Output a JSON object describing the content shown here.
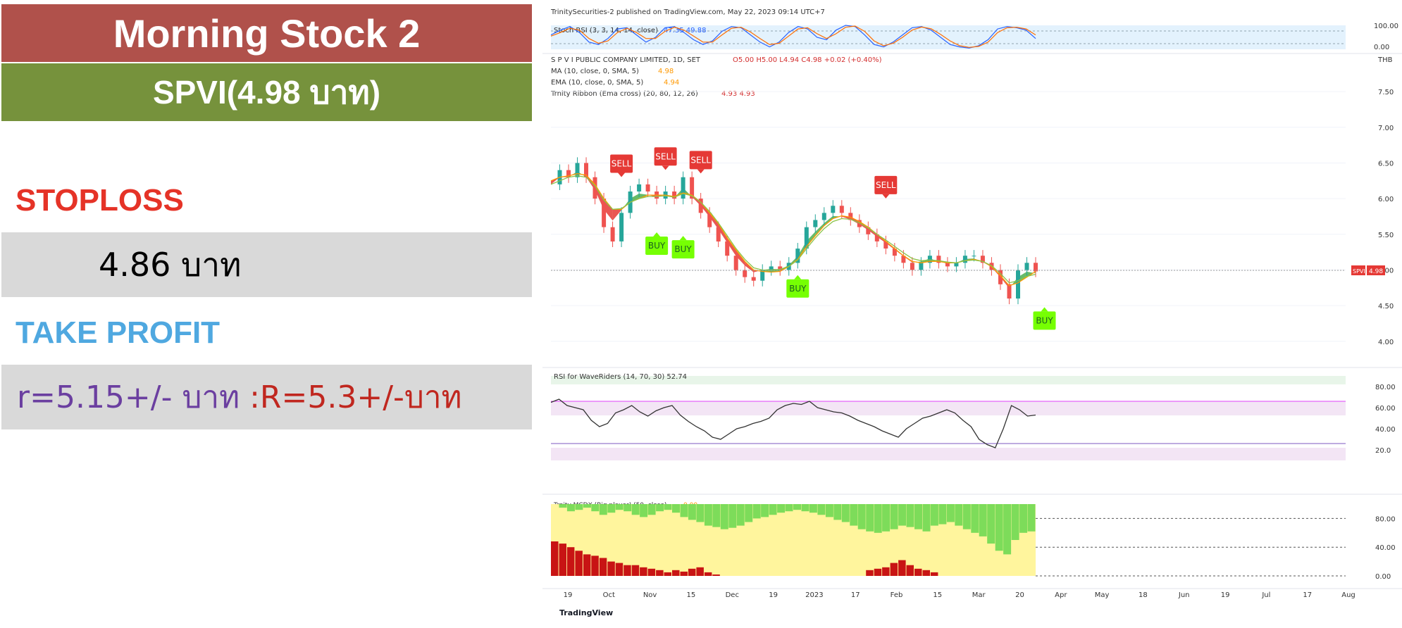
{
  "left_panel": {
    "title": "Morning Stock 2",
    "symbol_price": "SPVI(4.98 บาท)",
    "stoploss_label": "STOPLOSS",
    "stoploss_value": "4.86 บาท",
    "take_profit_label": "TAKE PROFIT",
    "take_profit_r1": "r=5.15+/- บาท ",
    "take_profit_r2": ":R=5.3+/-บาท",
    "colors": {
      "title_bg": "#b0514b",
      "symbol_bg": "#76923c",
      "stoploss": "#e53327",
      "take_profit": "#4fa8e0",
      "r1": "#6b3fa0",
      "r2": "#c0271f",
      "box_bg": "#d9d9d9"
    }
  },
  "chart_header": {
    "published": "TrinitySecurities-2 published on TradingView.com, May 22, 2023 09:14 UTC+7",
    "stoch_label": "Stoch RSI (3, 3, 14, 14, close)",
    "stoch_values": "47.35  49.88",
    "ohlc_name": "S P V I PUBLIC COMPANY LIMITED, 1D, SET",
    "ohlc": "O5.00  H5.00  L4.94  C4.98  +0.02 (+0.40%)",
    "ma_label": "MA (10, close, 0, SMA, 5)",
    "ma_value": "4.98",
    "ema_label": "EMA (10, close, 0, SMA, 5)",
    "ema_value": "4.94",
    "ribbon_label": "Trnity Ribbon (Ema cross) (20, 80, 12, 26)",
    "ribbon_values": "4.93  4.93",
    "currency": "THB",
    "ticker_tag": "SPVI",
    "price_tag": "4.98",
    "rsi_label": "RSI for WaveRiders (14, 70, 30)  52.74",
    "mcdx_label": "Trnity MCDX (Big player) (50, close)",
    "mcdx_value": "0.00",
    "watermark": "TradingView"
  },
  "chart_data": [
    {
      "type": "line",
      "title": "Stoch RSI (3, 3, 14, 14, close)",
      "y_ticks": [
        "100.00",
        "0.00"
      ],
      "ylim": [
        0,
        100
      ],
      "series": [
        {
          "name": "K",
          "color": "#2962ff",
          "values": [
            60,
            80,
            95,
            70,
            30,
            20,
            45,
            85,
            90,
            60,
            30,
            50,
            90,
            95,
            70,
            40,
            20,
            35,
            75,
            95,
            90,
            60,
            30,
            10,
            30,
            70,
            95,
            85,
            50,
            40,
            80,
            100,
            95,
            60,
            20,
            10,
            30,
            60,
            90,
            95,
            80,
            50,
            20,
            10,
            5,
            15,
            40,
            85,
            95,
            90,
            80,
            45
          ]
        },
        {
          "name": "D",
          "color": "#ff6d00",
          "values": [
            55,
            70,
            88,
            80,
            45,
            25,
            35,
            70,
            88,
            70,
            45,
            45,
            75,
            92,
            80,
            55,
            30,
            30,
            60,
            88,
            92,
            72,
            45,
            20,
            25,
            55,
            85,
            90,
            65,
            45,
            65,
            92,
            97,
            75,
            35,
            15,
            25,
            50,
            80,
            93,
            86,
            62,
            35,
            15,
            8,
            12,
            30,
            70,
            90,
            92,
            85,
            60
          ]
        }
      ]
    },
    {
      "type": "line",
      "title": "S P V I PUBLIC COMPANY LIMITED, 1D, SET",
      "y_ticks": [
        "7.50",
        "7.00",
        "6.50",
        "6.00",
        "5.50",
        "5.00",
        "4.50",
        "4.00"
      ],
      "ylim": [
        3.85,
        7.6
      ],
      "x_ticks": [
        "19",
        "Oct",
        "Nov",
        "15",
        "Dec",
        "19",
        "2023",
        "17",
        "Feb",
        "15",
        "Mar",
        "20",
        "Apr",
        "May",
        "18",
        "Jun",
        "19",
        "Jul",
        "17",
        "Aug"
      ],
      "series": [
        {
          "name": "Close",
          "color": "#26a69a",
          "values": [
            6.2,
            6.4,
            6.3,
            6.5,
            6.3,
            6.0,
            5.6,
            5.4,
            5.8,
            6.1,
            6.2,
            6.1,
            6.0,
            6.1,
            6.0,
            6.3,
            6.0,
            5.8,
            5.6,
            5.4,
            5.2,
            5.0,
            4.9,
            4.85,
            5.0,
            5.05,
            5.0,
            5.1,
            5.3,
            5.6,
            5.7,
            5.8,
            5.9,
            5.8,
            5.7,
            5.6,
            5.5,
            5.4,
            5.3,
            5.2,
            5.1,
            5.0,
            5.1,
            5.2,
            5.1,
            5.05,
            5.1,
            5.2,
            5.2,
            5.1,
            5.0,
            4.8,
            4.6,
            5.0,
            5.1,
            4.98
          ]
        },
        {
          "name": "MA (10, close, 0, SMA, 5)",
          "color": "#ff9800",
          "values": [
            6.25,
            6.3,
            6.32,
            6.35,
            6.33,
            6.2,
            6.0,
            5.85,
            5.85,
            5.95,
            6.0,
            6.05,
            6.05,
            6.05,
            6.03,
            6.08,
            6.05,
            5.95,
            5.8,
            5.65,
            5.45,
            5.28,
            5.12,
            5.0,
            4.98,
            4.97,
            4.98,
            5.05,
            5.15,
            5.33,
            5.48,
            5.62,
            5.72,
            5.76,
            5.74,
            5.68,
            5.6,
            5.5,
            5.4,
            5.3,
            5.2,
            5.12,
            5.1,
            5.12,
            5.12,
            5.1,
            5.1,
            5.13,
            5.15,
            5.12,
            5.05,
            4.92,
            4.78,
            4.82,
            4.9,
            4.98
          ]
        },
        {
          "name": "EMA (10, close, 0, SMA, 5)",
          "color": "#8bc34a",
          "values": [
            6.2,
            6.25,
            6.3,
            6.32,
            6.3,
            6.18,
            5.98,
            5.85,
            5.86,
            5.95,
            6.0,
            6.03,
            6.03,
            6.04,
            6.02,
            6.07,
            6.04,
            5.95,
            5.82,
            5.66,
            5.48,
            5.3,
            5.15,
            5.03,
            5.0,
            5.0,
            5.01,
            5.05,
            5.14,
            5.3,
            5.45,
            5.58,
            5.68,
            5.72,
            5.71,
            5.66,
            5.59,
            5.5,
            5.42,
            5.33,
            5.24,
            5.16,
            5.13,
            5.14,
            5.13,
            5.11,
            5.1,
            5.13,
            5.14,
            5.12,
            5.06,
            4.95,
            4.82,
            4.85,
            4.91,
            4.94
          ]
        }
      ],
      "annotations": [
        {
          "text": "SELL",
          "x_index": 8,
          "value": 6.5
        },
        {
          "text": "SELL",
          "x_index": 13,
          "value": 6.6
        },
        {
          "text": "SELL",
          "x_index": 17,
          "value": 6.55
        },
        {
          "text": "BUY",
          "x_index": 12,
          "value": 5.35
        },
        {
          "text": "BUY",
          "x_index": 15,
          "value": 5.3
        },
        {
          "text": "BUY",
          "x_index": 28,
          "value": 4.75
        },
        {
          "text": "SELL",
          "x_index": 38,
          "value": 6.2
        },
        {
          "text": "BUY",
          "x_index": 56,
          "value": 4.3
        }
      ],
      "last_value": 4.98
    },
    {
      "type": "line",
      "title": "RSI for WaveRiders (14, 70, 30)",
      "y_ticks": [
        "80.00",
        "60.00",
        "40.00",
        "20.0"
      ],
      "ylim": [
        10,
        90
      ],
      "series": [
        {
          "name": "RSI",
          "color": "#333333",
          "values": [
            65,
            68,
            62,
            60,
            58,
            48,
            42,
            45,
            55,
            58,
            62,
            56,
            52,
            57,
            60,
            62,
            53,
            47,
            42,
            38,
            32,
            30,
            35,
            40,
            42,
            45,
            47,
            50,
            58,
            62,
            64,
            63,
            66,
            60,
            58,
            56,
            55,
            52,
            48,
            45,
            42,
            38,
            35,
            32,
            40,
            45,
            50,
            52,
            55,
            58,
            55,
            48,
            42,
            30,
            25,
            22,
            40,
            62,
            58,
            52,
            53
          ]
        }
      ]
    },
    {
      "type": "bar",
      "title": "Trnity MCDX (Big player) (50, close)",
      "y_ticks": [
        "80.00",
        "40.00",
        "0.00"
      ],
      "ylim": [
        0,
        100
      ],
      "series": [
        {
          "name": "Retailer (green)",
          "color": "#7ddc5a",
          "values": [
            0,
            5,
            10,
            8,
            5,
            10,
            15,
            12,
            8,
            10,
            15,
            18,
            15,
            10,
            8,
            12,
            18,
            22,
            25,
            30,
            32,
            35,
            33,
            30,
            25,
            20,
            18,
            15,
            12,
            10,
            8,
            10,
            12,
            15,
            18,
            22,
            25,
            30,
            35,
            38,
            40,
            38,
            35,
            30,
            32,
            35,
            38,
            30,
            28,
            25,
            30,
            35,
            40,
            45,
            55,
            65,
            70,
            50,
            40,
            38
          ]
        },
        {
          "name": "Big player (red)",
          "color": "#c81414",
          "values": [
            48,
            45,
            40,
            35,
            30,
            28,
            25,
            20,
            18,
            15,
            15,
            12,
            10,
            8,
            5,
            8,
            6,
            10,
            12,
            5,
            2,
            0,
            0,
            0,
            0,
            0,
            0,
            0,
            0,
            0,
            0,
            0,
            0,
            0,
            0,
            0,
            0,
            0,
            0,
            8,
            10,
            12,
            18,
            22,
            15,
            10,
            8,
            5,
            0,
            0,
            0,
            0,
            0,
            0,
            0,
            0,
            0,
            0,
            0,
            0
          ]
        }
      ]
    }
  ]
}
